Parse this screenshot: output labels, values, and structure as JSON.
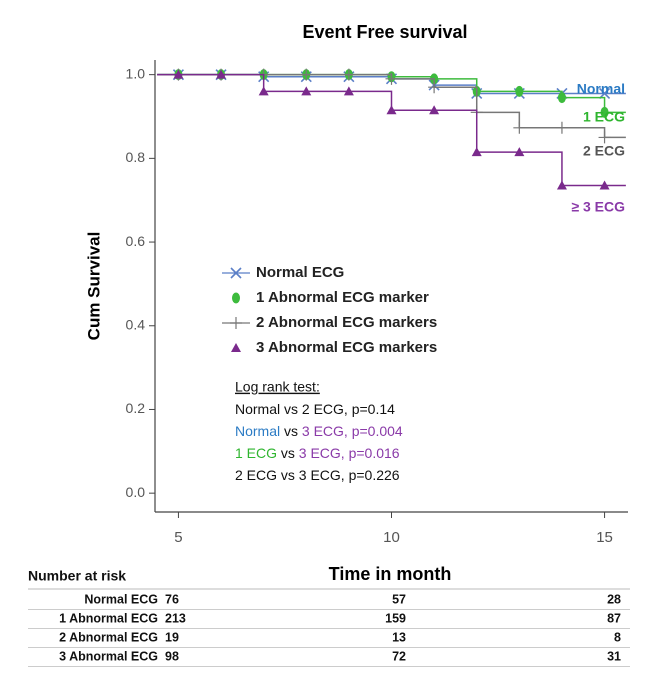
{
  "chart_data": {
    "type": "step",
    "title": "Event Free survival",
    "x_label": "Time in month",
    "y_label": "Cum Survival",
    "x": [
      4.5,
      5,
      6,
      7,
      8,
      9,
      10,
      11,
      12,
      13,
      14,
      15,
      15.5
    ],
    "xlim": [
      4.45,
      15.55
    ],
    "ylim": [
      -0.045,
      1.035
    ],
    "xticks": [
      5,
      10,
      15
    ],
    "yticks": [
      {
        "value": 0,
        "label": "0.0"
      },
      {
        "value": 0.2,
        "label": "0.2"
      },
      {
        "value": 0.4,
        "label": "0.4"
      },
      {
        "value": 0.6,
        "label": "0.6"
      },
      {
        "value": 0.8,
        "label": "0.8"
      },
      {
        "value": 1,
        "label": "1.0"
      }
    ],
    "series": [
      {
        "name": "Normal ECG",
        "color": "#5b7fc7",
        "marker": "x",
        "end_label": "Normal",
        "end_label_color": "#2b7bc4",
        "values": [
          1,
          1,
          1,
          0.995,
          0.995,
          0.995,
          0.99,
          0.975,
          0.955,
          0.955,
          0.955,
          0.955,
          0.955
        ]
      },
      {
        "name": "1 Abnormal ECG marker",
        "color": "#3dbb3d",
        "marker": "ellipse",
        "end_label": "1 ECG",
        "end_label_color": "#2fb52f",
        "values": [
          1,
          1,
          1,
          1,
          1,
          1,
          0.995,
          0.99,
          0.96,
          0.96,
          0.945,
          0.91,
          0.91
        ]
      },
      {
        "name": "2 Abnormal ECG markers",
        "color": "#777777",
        "marker": "plus",
        "end_label": "2 ECG",
        "end_label_color": "#555555",
        "values": [
          1,
          1,
          1,
          1,
          1,
          1,
          0.99,
          0.97,
          0.91,
          0.873,
          0.873,
          0.85,
          0.85
        ]
      },
      {
        "name": "3 Abnormal ECG markers",
        "color": "#7a2a8c",
        "marker": "triangle",
        "end_label": "≥ 3 ECG",
        "end_label_color": "#8a3aa8",
        "values": [
          1,
          1,
          1,
          0.96,
          0.96,
          0.96,
          0.915,
          0.915,
          0.815,
          0.815,
          0.735,
          0.735,
          0.735
        ]
      }
    ],
    "log_rank": {
      "title": "Log rank test:",
      "lines": [
        [
          {
            "text": "Normal vs 2 ECG, p=0.14",
            "color": "#111111"
          }
        ],
        [
          {
            "text": "Normal",
            "color": "#2b7bc4"
          },
          {
            "text": " vs ",
            "color": "#111111"
          },
          {
            "text": "3 ECG, p=0.004",
            "color": "#8a3aa8"
          }
        ],
        [
          {
            "text": "1 ECG",
            "color": "#2fb52f"
          },
          {
            "text": " vs ",
            "color": "#111111"
          },
          {
            "text": "3 ECG, p=0.016",
            "color": "#8a3aa8"
          }
        ],
        [
          {
            "text": "2 ECG vs 3 ECG, p=0.226",
            "color": "#111111"
          }
        ]
      ]
    },
    "risk_table": {
      "title": "Number at risk",
      "rows": [
        {
          "name": "Normal ECG",
          "values": [
            76,
            57,
            28
          ]
        },
        {
          "name": "1 Abnormal ECG",
          "values": [
            213,
            159,
            87
          ]
        },
        {
          "name": "2 Abnormal ECG",
          "values": [
            19,
            13,
            8
          ]
        },
        {
          "name": "3 Abnormal ECG",
          "values": [
            98,
            72,
            31
          ]
        }
      ]
    }
  }
}
